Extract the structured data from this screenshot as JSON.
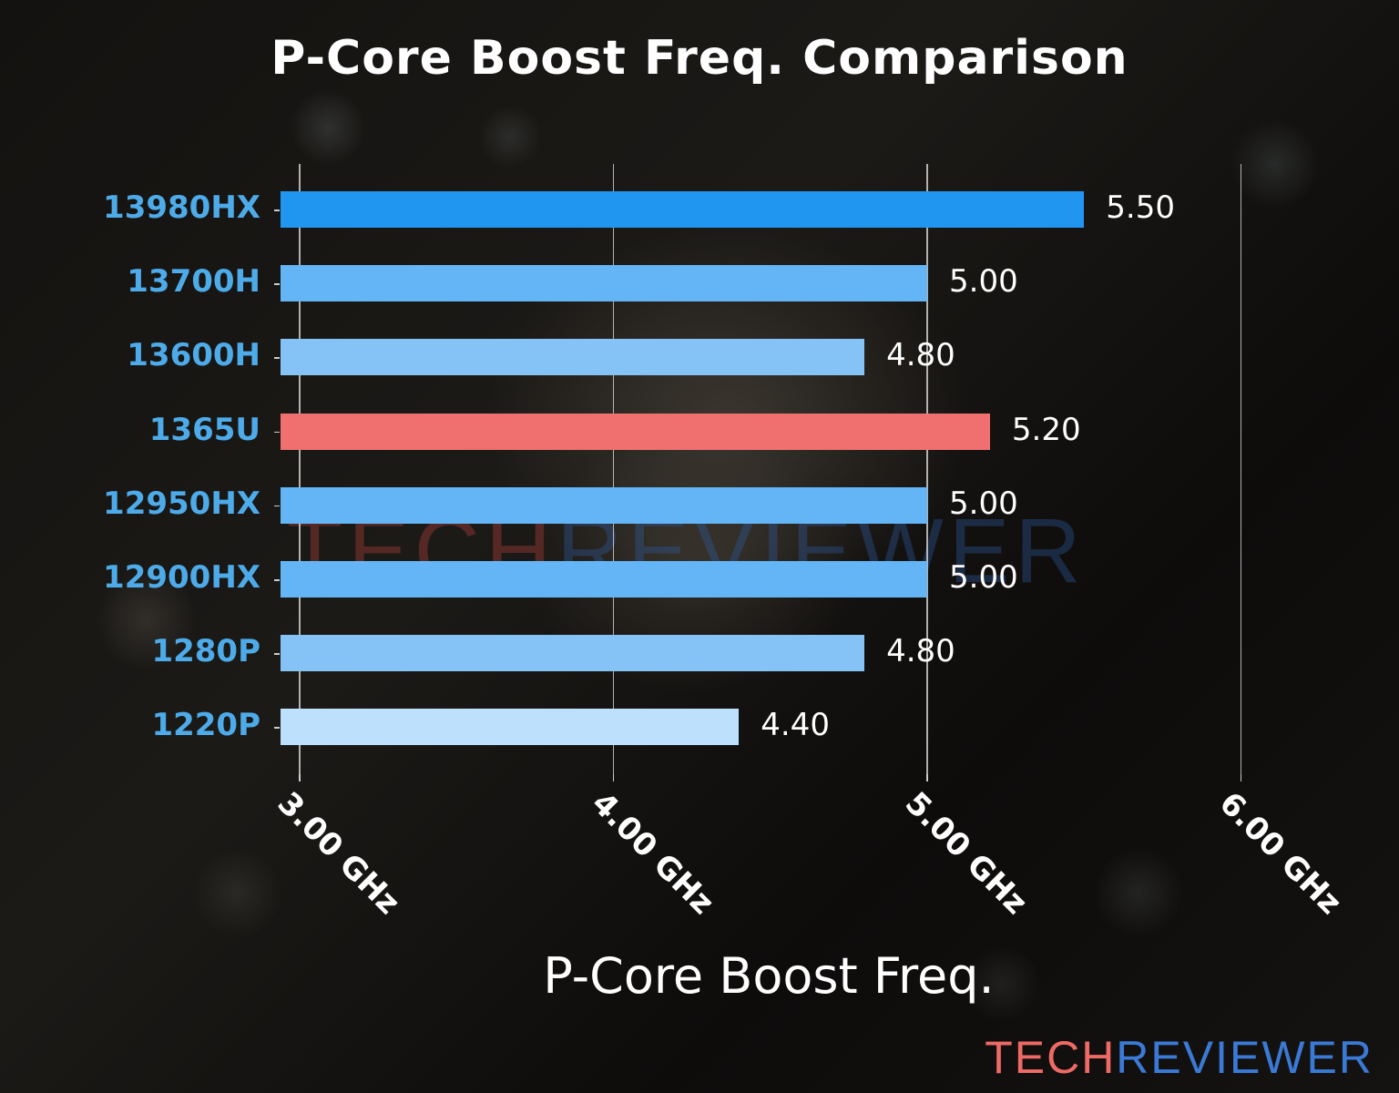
{
  "title": "P-Core Boost Freq. Comparison",
  "watermark": {
    "part1": "TECH",
    "part2": "REVIEWER"
  },
  "logo": {
    "part1": "TECH",
    "part2": "REVIEWER",
    "color1": "#EE6A66",
    "color2": "#3A7AD6"
  },
  "axis": {
    "xlabel": "P-Core Boost Freq.",
    "ticks": [
      "3.00 GHz",
      "4.00 GHz",
      "5.00 GHz",
      "6.00 GHz"
    ]
  },
  "chart_data": {
    "type": "bar",
    "orientation": "horizontal",
    "title": "P-Core Boost Freq. Comparison",
    "xlabel": "P-Core Boost Freq.",
    "ylabel": "",
    "categories": [
      "13980HX",
      "13700H",
      "13600H",
      "1365U",
      "12950HX",
      "12900HX",
      "1280P",
      "1220P"
    ],
    "values": [
      5.5,
      5.0,
      4.8,
      5.2,
      5.0,
      5.0,
      4.8,
      4.4
    ],
    "value_labels": [
      "5.50",
      "5.00",
      "4.80",
      "5.20",
      "5.00",
      "5.00",
      "4.80",
      "4.40"
    ],
    "bar_colors": [
      "#2196F0",
      "#64B5F6",
      "#85C3F6",
      "#F07070",
      "#64B5F6",
      "#64B5F6",
      "#85C3F6",
      "#BDE0FC"
    ],
    "highlight": "1365U",
    "xticks": [
      3.0,
      4.0,
      5.0,
      6.0
    ],
    "xtick_labels": [
      "3.00 GHz",
      "4.00 GHz",
      "5.00 GHz",
      "6.00 GHz"
    ],
    "xlim": [
      2.94,
      6.0
    ],
    "grid": "vertical",
    "legend": "none",
    "category_label_color": "#4DABEA",
    "value_label_color": "#FFFFFF"
  }
}
